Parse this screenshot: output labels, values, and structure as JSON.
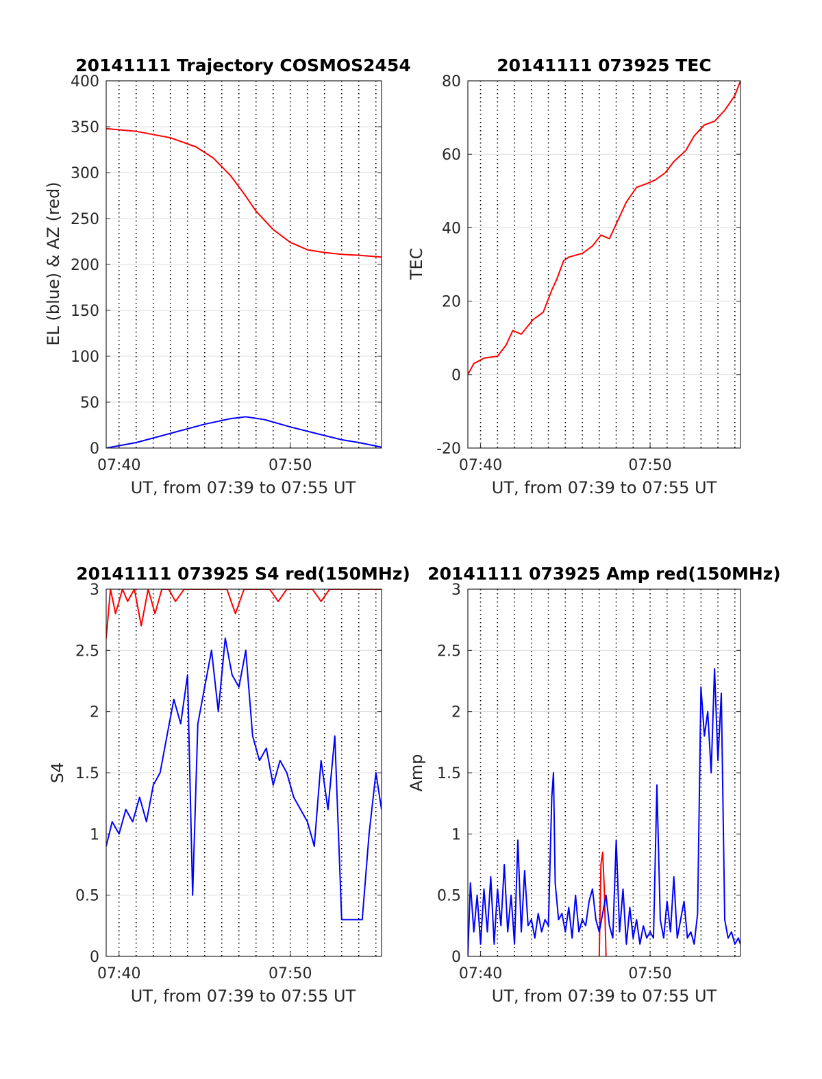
{
  "chart_data": [
    {
      "type": "line",
      "title": "20141111 Trajectory COSMOS2454",
      "xlabel": "UT, from 07:39 to 07:55 UT",
      "ylabel": "EL (blue) & AZ (red)",
      "xlim_min": [
        39.25,
        55.33
      ],
      "ylim": [
        0,
        400
      ],
      "yticks": [
        0,
        50,
        100,
        150,
        200,
        250,
        300,
        350,
        400
      ],
      "xtick_labels": [
        {
          "t": 40,
          "label": "07:40"
        },
        {
          "t": 50,
          "label": "07:50"
        }
      ],
      "minor_grid_min": [
        40,
        41,
        42,
        43,
        44,
        45,
        46,
        47,
        48,
        49,
        50,
        51,
        52,
        53,
        54,
        55
      ],
      "grid": true,
      "series": [
        {
          "color": "#ff0000",
          "x": [
            39.25,
            41,
            43,
            44.5,
            45.5,
            46.5,
            47.3,
            48,
            49,
            50,
            51,
            52,
            53,
            54,
            55.33
          ],
          "y": [
            348,
            345,
            338,
            328,
            316,
            297,
            277,
            258,
            238,
            224,
            216,
            213,
            211,
            210,
            208
          ]
        },
        {
          "color": "#0000ff",
          "x": [
            39.25,
            41,
            43,
            45,
            46.5,
            47.4,
            48.5,
            50,
            51.5,
            53,
            54,
            55.33
          ],
          "y": [
            0,
            6,
            16,
            26,
            32,
            34,
            31,
            23,
            16,
            9,
            6,
            1
          ]
        }
      ]
    },
    {
      "type": "line",
      "title": "20141111 073925 TEC",
      "xlabel": "UT, from 07:39 to 07:55 UT",
      "ylabel": "TEC",
      "xlim_min": [
        39.25,
        55.33
      ],
      "ylim": [
        -20,
        80
      ],
      "yticks": [
        -20,
        0,
        20,
        40,
        60,
        80
      ],
      "xtick_labels": [
        {
          "t": 40,
          "label": "07:40"
        },
        {
          "t": 50,
          "label": "07:50"
        }
      ],
      "minor_grid_min": [
        40,
        41,
        42,
        43,
        44,
        45,
        46,
        47,
        48,
        49,
        50,
        51,
        52,
        53,
        54,
        55
      ],
      "grid": true,
      "series": [
        {
          "color": "#ff0000",
          "x": [
            39.25,
            39.6,
            40.2,
            41,
            41.5,
            41.9,
            42.4,
            43.1,
            43.7,
            44.2,
            44.5,
            44.9,
            45.2,
            46,
            46.6,
            47.1,
            47.6,
            48.1,
            48.6,
            49.2,
            49.8,
            50.3,
            50.9,
            51.4,
            52.1,
            52.6,
            53.2,
            53.8,
            54.4,
            55.0,
            55.33
          ],
          "y": [
            0,
            3,
            4.5,
            5,
            8,
            12,
            11,
            15,
            17,
            23,
            26,
            31,
            32,
            33,
            35,
            38,
            37,
            42,
            47,
            51,
            52,
            53,
            55,
            58,
            61,
            65,
            68,
            69,
            72,
            76,
            80
          ]
        }
      ]
    },
    {
      "type": "line",
      "title": "20141111 073925 S4 red(150MHz)",
      "xlabel": "UT, from 07:39 to 07:55 UT",
      "ylabel": "S4",
      "xlim_min": [
        39.25,
        55.33
      ],
      "ylim": [
        0,
        3
      ],
      "yticks": [
        0,
        0.5,
        1,
        1.5,
        2,
        2.5,
        3
      ],
      "ytick_labels": [
        "0",
        "0.5",
        "1",
        "1.5",
        "2",
        "2.5",
        "3"
      ],
      "xtick_labels": [
        {
          "t": 40,
          "label": "07:40"
        },
        {
          "t": 50,
          "label": "07:50"
        }
      ],
      "minor_grid_min": [
        40,
        41,
        42,
        43,
        44,
        45,
        46,
        47,
        48,
        49,
        50,
        51,
        52,
        53,
        54,
        55
      ],
      "grid": true,
      "series": [
        {
          "color": "#ff0000",
          "x": [
            39.25,
            39.5,
            39.8,
            40.2,
            40.5,
            40.9,
            41.3,
            41.7,
            42.1,
            42.5,
            42.9,
            43.3,
            43.8,
            44.3,
            44.8,
            45.3,
            45.8,
            46.3,
            46.8,
            47.3,
            47.8,
            48.3,
            48.8,
            49.3,
            49.8,
            50.3,
            50.8,
            51.3,
            51.8,
            52.3,
            52.8,
            53.3,
            53.8,
            54.3,
            54.8,
            55.33
          ],
          "y": [
            2.6,
            3,
            2.8,
            3,
            2.9,
            3,
            2.7,
            3,
            2.8,
            3,
            3,
            2.9,
            3,
            3,
            3,
            3,
            3,
            3,
            2.8,
            3,
            3,
            3,
            3,
            2.9,
            3,
            3,
            3,
            3,
            2.9,
            3,
            3,
            3,
            3,
            3,
            3,
            3
          ]
        },
        {
          "color": "#0000ff",
          "x": [
            39.25,
            39.6,
            40.0,
            40.4,
            40.8,
            41.2,
            41.6,
            42.0,
            42.4,
            42.8,
            43.2,
            43.6,
            44.0,
            44.3,
            44.6,
            45.0,
            45.4,
            45.8,
            46.2,
            46.6,
            47.0,
            47.4,
            47.8,
            48.2,
            48.6,
            49.0,
            49.4,
            49.8,
            50.2,
            50.6,
            51.0,
            51.4,
            51.8,
            52.2,
            52.6,
            53.0,
            53.4,
            53.8,
            54.2,
            54.6,
            55.0,
            55.33
          ],
          "y": [
            0.9,
            1.1,
            1.0,
            1.2,
            1.1,
            1.3,
            1.1,
            1.4,
            1.5,
            1.8,
            2.1,
            1.9,
            2.3,
            0.5,
            1.9,
            2.2,
            2.5,
            2.0,
            2.6,
            2.3,
            2.2,
            2.5,
            1.8,
            1.6,
            1.7,
            1.4,
            1.6,
            1.5,
            1.3,
            1.2,
            1.1,
            0.9,
            1.6,
            1.2,
            1.8,
            0.3,
            0.3,
            0.3,
            0.3,
            1.0,
            1.5,
            1.2
          ]
        }
      ]
    },
    {
      "type": "line",
      "title": "20141111 073925 Amp red(150MHz)",
      "xlabel": "UT, from 07:39 to 07:55 UT",
      "ylabel": "Amp",
      "xlim_min": [
        39.25,
        55.33
      ],
      "ylim": [
        0,
        3
      ],
      "yticks": [
        0,
        0.5,
        1,
        1.5,
        2,
        2.5,
        3
      ],
      "ytick_labels": [
        "0",
        "0.5",
        "1",
        "1.5",
        "2",
        "2.5",
        "3"
      ],
      "xtick_labels": [
        {
          "t": 40,
          "label": "07:40"
        },
        {
          "t": 50,
          "label": "07:50"
        }
      ],
      "minor_grid_min": [
        40,
        41,
        42,
        43,
        44,
        45,
        46,
        47,
        48,
        49,
        50,
        51,
        52,
        53,
        54,
        55
      ],
      "grid": true,
      "series": [
        {
          "color": "#ff0000",
          "x": [
            47.0,
            47.1,
            47.2,
            47.3,
            47.4
          ],
          "y": [
            0.0,
            0.75,
            0.85,
            0.55,
            0.0
          ]
        },
        {
          "color": "#0000ff",
          "x": [
            39.25,
            39.4,
            39.6,
            39.8,
            40.0,
            40.2,
            40.4,
            40.6,
            40.8,
            41.0,
            41.2,
            41.4,
            41.6,
            41.8,
            42.0,
            42.2,
            42.4,
            42.6,
            42.8,
            43.0,
            43.2,
            43.4,
            43.6,
            43.8,
            44.0,
            44.2,
            44.3,
            44.4,
            44.6,
            44.8,
            45.0,
            45.2,
            45.4,
            45.6,
            45.8,
            46.0,
            46.2,
            46.4,
            46.6,
            46.8,
            47.0,
            47.2,
            47.4,
            47.6,
            47.8,
            48.0,
            48.2,
            48.4,
            48.6,
            48.8,
            49.0,
            49.2,
            49.4,
            49.6,
            49.8,
            50.0,
            50.2,
            50.4,
            50.6,
            50.8,
            51.0,
            51.2,
            51.4,
            51.6,
            51.8,
            52.0,
            52.2,
            52.4,
            52.6,
            52.8,
            53.0,
            53.2,
            53.4,
            53.6,
            53.8,
            54.0,
            54.2,
            54.4,
            54.6,
            54.8,
            55.0,
            55.2,
            55.33
          ],
          "y": [
            0.0,
            0.6,
            0.2,
            0.5,
            0.1,
            0.55,
            0.2,
            0.65,
            0.1,
            0.55,
            0.25,
            0.75,
            0.2,
            0.5,
            0.1,
            0.95,
            0.2,
            0.7,
            0.25,
            0.3,
            0.15,
            0.35,
            0.2,
            0.3,
            0.25,
            1.3,
            1.5,
            0.6,
            0.3,
            0.35,
            0.2,
            0.4,
            0.15,
            0.5,
            0.2,
            0.3,
            0.25,
            0.45,
            0.55,
            0.3,
            0.2,
            0.35,
            0.5,
            0.25,
            0.15,
            0.95,
            0.2,
            0.55,
            0.1,
            0.4,
            0.15,
            0.3,
            0.1,
            0.25,
            0.15,
            0.2,
            0.15,
            1.4,
            0.3,
            0.15,
            0.45,
            0.2,
            0.65,
            0.15,
            0.3,
            0.45,
            0.15,
            0.2,
            0.1,
            0.35,
            2.2,
            1.8,
            2.0,
            1.5,
            2.35,
            1.6,
            2.15,
            0.3,
            0.15,
            0.2,
            0.1,
            0.15,
            0.1
          ]
        }
      ]
    }
  ]
}
